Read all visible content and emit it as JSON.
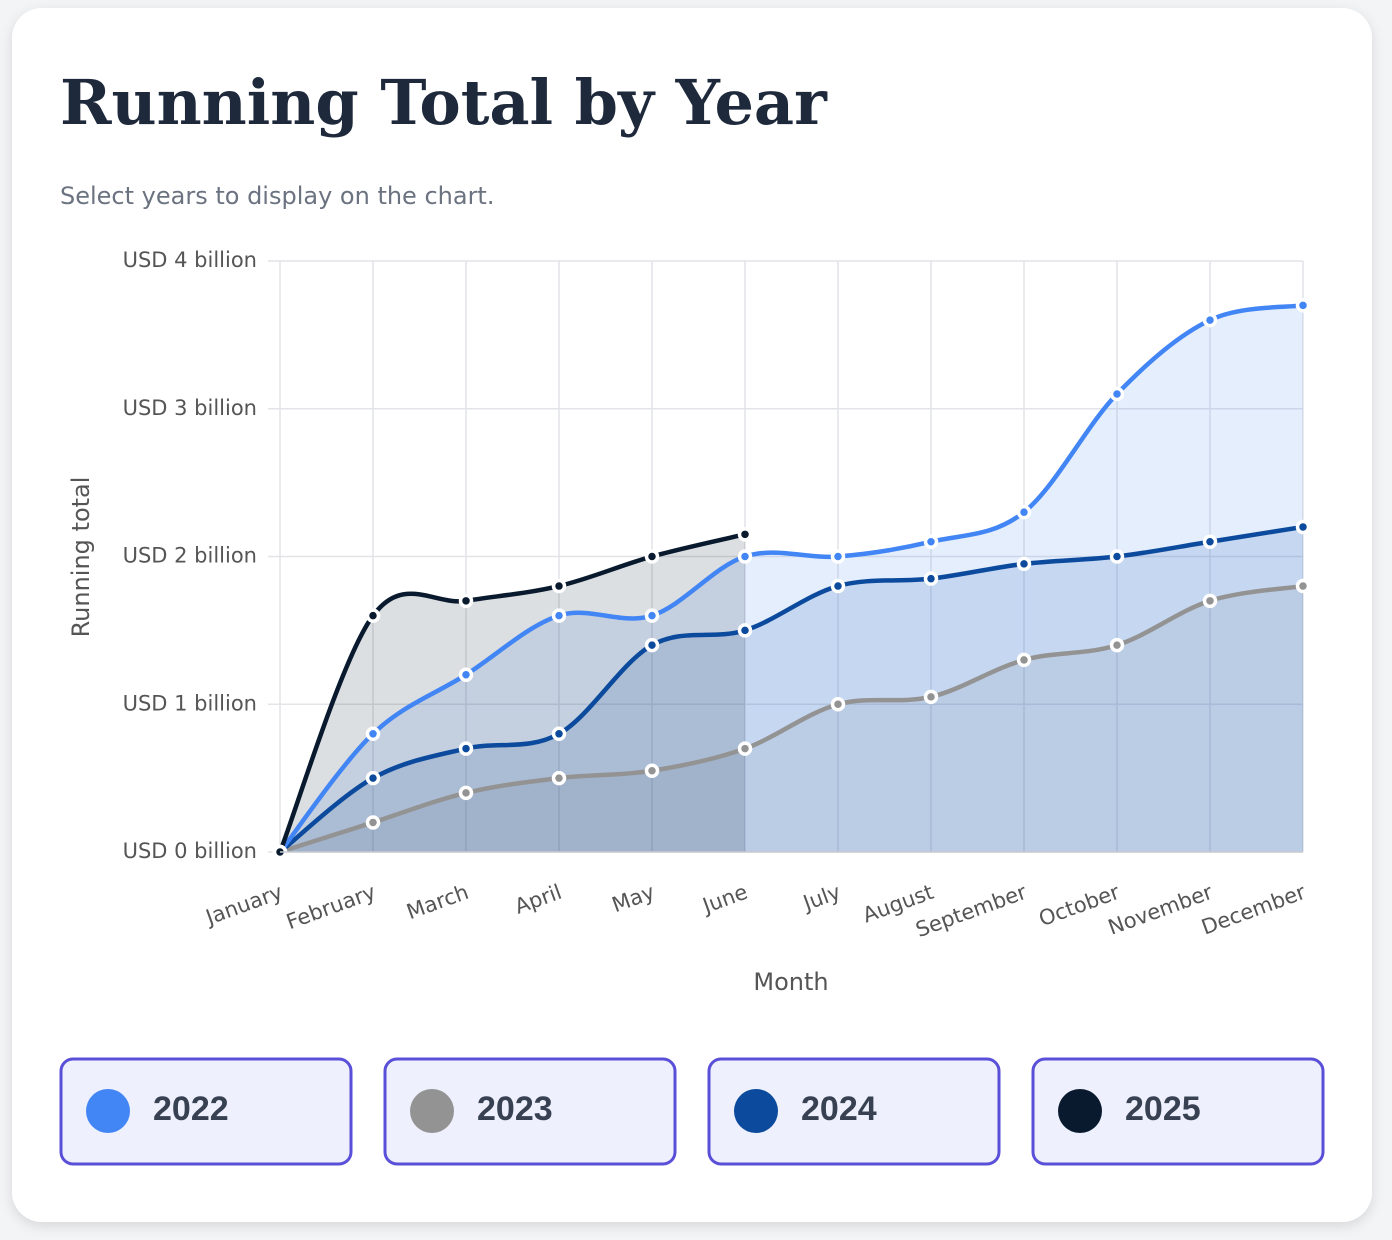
{
  "chart_data": {
    "type": "line",
    "title": "Running Total by Year",
    "subtitle": "Select years to display on the chart.",
    "x_label": "Month",
    "y_label": "Running total",
    "categories": [
      "January",
      "February",
      "March",
      "April",
      "May",
      "June",
      "July",
      "August",
      "September",
      "October",
      "November",
      "December"
    ],
    "ylim": [
      0,
      4
    ],
    "yticks": [
      {
        "value": 0,
        "label": "USD 0 billion"
      },
      {
        "value": 1,
        "label": "USD 1 billion"
      },
      {
        "value": 2,
        "label": "USD 2 billion"
      },
      {
        "value": 3,
        "label": "USD 3 billion"
      },
      {
        "value": 4,
        "label": "USD 4 billion"
      }
    ],
    "grid": true,
    "area": true,
    "series": [
      {
        "name": "2023",
        "color": "#939393",
        "values": [
          0,
          0.2,
          0.4,
          0.5,
          0.55,
          0.7,
          1.0,
          1.05,
          1.3,
          1.4,
          1.7,
          1.8
        ]
      },
      {
        "name": "2024",
        "color": "#0b4a9c",
        "values": [
          0,
          0.5,
          0.7,
          0.8,
          1.4,
          1.5,
          1.8,
          1.85,
          1.95,
          2.0,
          2.1,
          2.2
        ]
      },
      {
        "name": "2022",
        "color": "#4285f4",
        "values": [
          0,
          0.8,
          1.2,
          1.6,
          1.6,
          2.0,
          2.0,
          2.1,
          2.3,
          3.1,
          3.6,
          3.7
        ]
      },
      {
        "name": "2025",
        "color": "#0a1a2e",
        "values": [
          0,
          1.6,
          1.7,
          1.8,
          2.0,
          2.15,
          null,
          null,
          null,
          null,
          null,
          null
        ]
      }
    ],
    "legend_order": [
      2,
      0,
      1,
      3
    ]
  }
}
